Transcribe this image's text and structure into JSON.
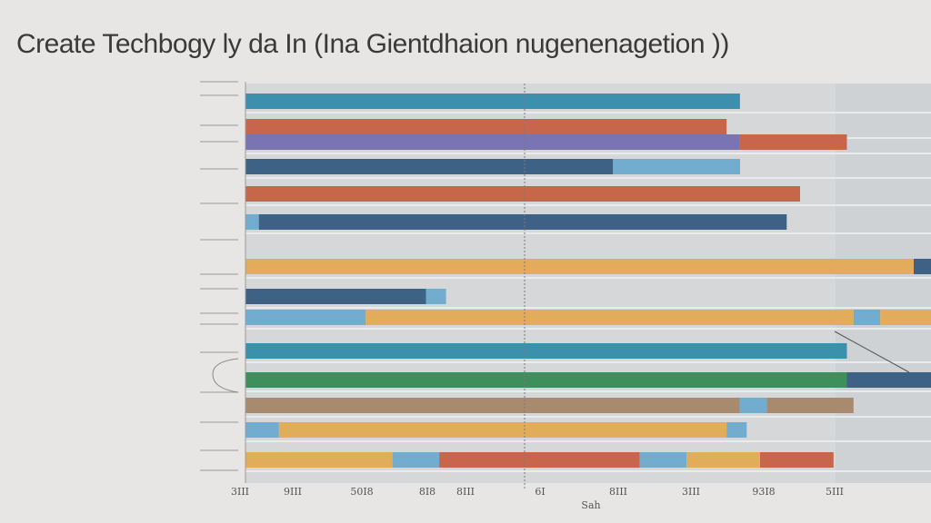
{
  "chart_data": {
    "type": "bar",
    "orientation": "horizontal",
    "title": "Create Techbogy ly da In (Ina Gientdhaion nugenenagetion ))",
    "xlabel": "Sah",
    "x_ticks": [
      "3III",
      "9III",
      "50I8",
      "8I8",
      "8III",
      "6I",
      "8III",
      "3III",
      "93I8",
      "5III"
    ],
    "grid": true,
    "legend": "none",
    "colors": {
      "teal": "#3d8fae",
      "rust": "#c8664c",
      "purple": "#7b74b3",
      "navy": "#3e6186",
      "orange": "#e2ad5a",
      "green": "#3e8f5c",
      "sky": "#72add0",
      "taupe": "#a88a6e",
      "background": "#e7e6e4",
      "panel": "#d5d7d8"
    },
    "rows": [
      {
        "label": "",
        "segments": [
          {
            "color": "teal",
            "value": 0.74
          }
        ]
      },
      {
        "label": "",
        "segments": [
          {
            "color": "rust",
            "value": 0.72
          }
        ]
      },
      {
        "label": "",
        "segments": [
          {
            "color": "purple",
            "value": 0.74
          },
          {
            "color": "rust",
            "value": 0.16
          }
        ]
      },
      {
        "label": "",
        "segments": [
          {
            "color": "navy",
            "value": 0.55
          },
          {
            "color": "sky",
            "value": 0.19
          }
        ]
      },
      {
        "label": "",
        "segments": [
          {
            "color": "rust",
            "value": 0.83
          }
        ]
      },
      {
        "label": "",
        "segments": [
          {
            "color": "sky",
            "value": 0.02
          },
          {
            "color": "navy",
            "value": 0.79
          }
        ]
      },
      {
        "label": "",
        "segments": [
          {
            "color": "orange",
            "value": 1.0
          },
          {
            "color": "navy",
            "value": 0.03
          }
        ]
      },
      {
        "label": "",
        "segments": [
          {
            "color": "navy",
            "value": 0.27
          },
          {
            "color": "sky",
            "value": 0.03
          }
        ]
      },
      {
        "label": "",
        "segments": [
          {
            "color": "sky",
            "value": 0.18
          },
          {
            "color": "orange",
            "value": 0.73
          },
          {
            "color": "sky",
            "value": 0.04
          },
          {
            "color": "orange",
            "value": 0.09
          }
        ]
      },
      {
        "label": "",
        "segments": [
          {
            "color": "teal",
            "value": 0.9
          }
        ]
      },
      {
        "label": "",
        "segments": [
          {
            "color": "green",
            "value": 0.9
          },
          {
            "color": "navy",
            "value": 0.15
          }
        ]
      },
      {
        "label": "",
        "segments": [
          {
            "color": "taupe",
            "value": 0.74
          },
          {
            "color": "sky",
            "value": 0.04
          },
          {
            "color": "taupe",
            "value": 0.13
          }
        ]
      },
      {
        "label": "",
        "segments": [
          {
            "color": "sky",
            "value": 0.05
          },
          {
            "color": "orange",
            "value": 0.67
          },
          {
            "color": "sky",
            "value": 0.03
          }
        ]
      },
      {
        "label": "",
        "segments": [
          {
            "color": "orange",
            "value": 0.22
          },
          {
            "color": "sky",
            "value": 0.07
          },
          {
            "color": "rust",
            "value": 0.3
          },
          {
            "color": "sky",
            "value": 0.07
          },
          {
            "color": "orange",
            "value": 0.11
          },
          {
            "color": "rust",
            "value": 0.11
          }
        ]
      }
    ]
  }
}
